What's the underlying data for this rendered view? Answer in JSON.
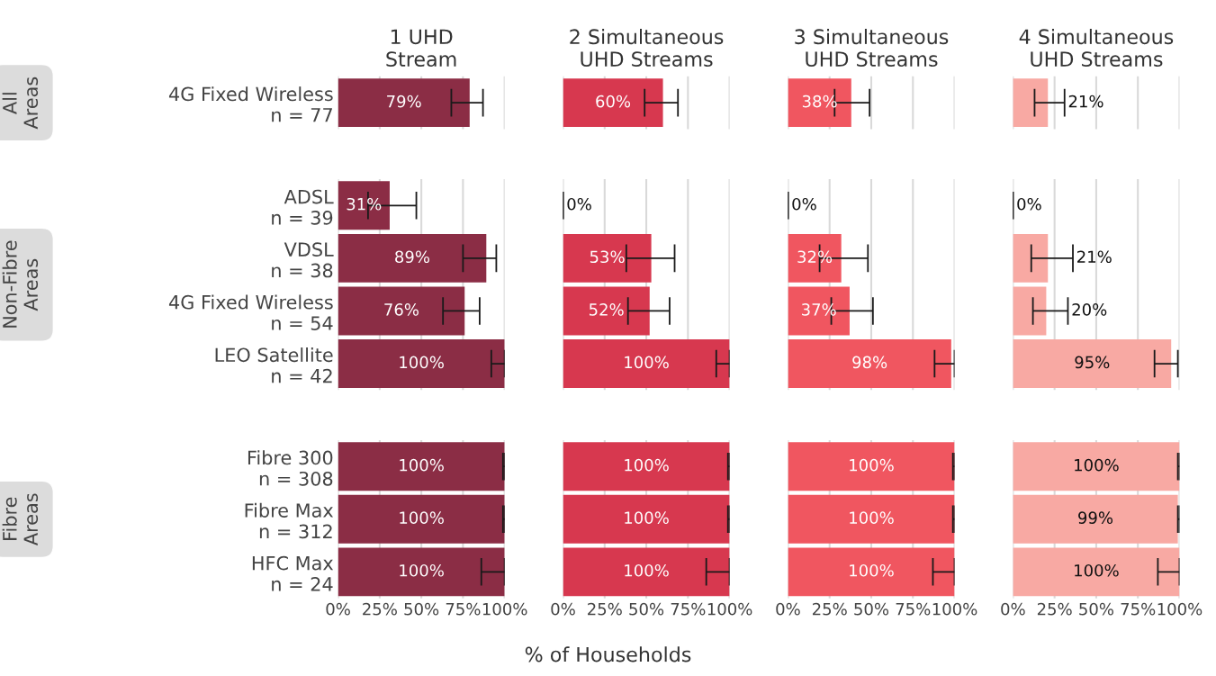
{
  "chart_data": [
    {
      "type": "bar",
      "orientation": "horizontal",
      "title": "1 UHD\nStream",
      "ylabel": "All\nAreas",
      "categories": [
        "4G Fixed Wireless\nn = 77"
      ],
      "values": [
        79
      ],
      "errors": [
        [
          68,
          87
        ]
      ],
      "value_labels": [
        "79%"
      ],
      "color": "#8b2d45",
      "xlim": [
        0,
        100
      ],
      "xticks": [
        {
          "value": 0,
          "label": null
        },
        {
          "value": 25,
          "label": null
        },
        {
          "value": 50,
          "label": null
        },
        {
          "value": 75,
          "label": null
        },
        {
          "value": 100,
          "label": null
        }
      ],
      "grid": "x",
      "tick_labels": "y"
    },
    {
      "type": "bar",
      "orientation": "horizontal",
      "title": "2 Simultaneous\nUHD Streams",
      "categories": [
        null
      ],
      "values": [
        60
      ],
      "errors": [
        [
          49,
          69
        ]
      ],
      "value_labels": [
        "60%"
      ],
      "color": "#d7384f",
      "xlim": [
        0,
        100
      ],
      "xticks": [
        {
          "value": 0,
          "label": null
        },
        {
          "value": 25,
          "label": null
        },
        {
          "value": 50,
          "label": null
        },
        {
          "value": 75,
          "label": null
        },
        {
          "value": 100,
          "label": null
        }
      ],
      "grid": "x",
      "tick_labels": false
    },
    {
      "type": "bar",
      "orientation": "horizontal",
      "title": "3 Simultaneous\nUHD Streams",
      "categories": [
        null
      ],
      "values": [
        38
      ],
      "errors": [
        [
          28,
          49
        ]
      ],
      "value_labels": [
        "38%"
      ],
      "color": "#f05660",
      "xlim": [
        0,
        100
      ],
      "xticks": [
        {
          "value": 0,
          "label": null
        },
        {
          "value": 25,
          "label": null
        },
        {
          "value": 50,
          "label": null
        },
        {
          "value": 75,
          "label": null
        },
        {
          "value": 100,
          "label": null
        }
      ],
      "grid": "x",
      "tick_labels": false
    },
    {
      "type": "bar",
      "orientation": "horizontal",
      "title": "4 Simultaneous\nUHD Streams",
      "categories": [
        null
      ],
      "values": [
        21
      ],
      "errors": [
        [
          13,
          31
        ]
      ],
      "value_labels": [
        "21%"
      ],
      "color": "#f8a9a3",
      "xlim": [
        0,
        100
      ],
      "xticks": [
        {
          "value": 0,
          "label": null
        },
        {
          "value": 25,
          "label": null
        },
        {
          "value": 50,
          "label": null
        },
        {
          "value": 75,
          "label": null
        },
        {
          "value": 100,
          "label": null
        }
      ],
      "grid": "x",
      "tick_labels": false
    },
    {
      "type": "bar",
      "orientation": "horizontal",
      "ylabel": "Non-Fibre\nAreas",
      "categories": [
        "ADSL\nn = 39",
        "VDSL\nn = 38",
        "4G Fixed Wireless\nn = 54",
        "LEO Satellite\nn = 42"
      ],
      "values": [
        31,
        89,
        76,
        100
      ],
      "errors": [
        [
          18,
          47
        ],
        [
          75,
          95
        ],
        [
          63,
          85
        ],
        [
          92,
          100
        ]
      ],
      "value_labels": [
        "31%",
        "89%",
        "76%",
        "100%"
      ],
      "color": "#8b2d45",
      "xlim": [
        0,
        100
      ],
      "xticks": [
        {
          "value": 0,
          "label": null
        },
        {
          "value": 25,
          "label": null
        },
        {
          "value": 50,
          "label": null
        },
        {
          "value": 75,
          "label": null
        },
        {
          "value": 100,
          "label": null
        }
      ],
      "grid": "x",
      "tick_labels": "y"
    },
    {
      "type": "bar",
      "orientation": "horizontal",
      "categories": [
        null,
        null,
        null,
        null
      ],
      "values": [
        0,
        53,
        52,
        100
      ],
      "errors": [
        [
          0,
          0
        ],
        [
          38,
          67
        ],
        [
          39,
          64
        ],
        [
          92,
          100
        ]
      ],
      "value_labels": [
        "0%",
        "53%",
        "52%",
        "100%"
      ],
      "color": "#d7384f",
      "xlim": [
        0,
        100
      ],
      "xticks": [
        {
          "value": 0,
          "label": null
        },
        {
          "value": 25,
          "label": null
        },
        {
          "value": 50,
          "label": null
        },
        {
          "value": 75,
          "label": null
        },
        {
          "value": 100,
          "label": null
        }
      ],
      "grid": "x",
      "tick_labels": false
    },
    {
      "type": "bar",
      "orientation": "horizontal",
      "categories": [
        null,
        null,
        null,
        null
      ],
      "values": [
        0,
        32,
        37,
        98
      ],
      "errors": [
        [
          0,
          0
        ],
        [
          19,
          48
        ],
        [
          26,
          51
        ],
        [
          88,
          100
        ]
      ],
      "value_labels": [
        "0%",
        "32%",
        "37%",
        "98%"
      ],
      "color": "#f05660",
      "xlim": [
        0,
        100
      ],
      "xticks": [
        {
          "value": 0,
          "label": null
        },
        {
          "value": 25,
          "label": null
        },
        {
          "value": 50,
          "label": null
        },
        {
          "value": 75,
          "label": null
        },
        {
          "value": 100,
          "label": null
        }
      ],
      "grid": "x",
      "tick_labels": false
    },
    {
      "type": "bar",
      "orientation": "horizontal",
      "categories": [
        null,
        null,
        null,
        null
      ],
      "values": [
        0,
        21,
        20,
        95
      ],
      "errors": [
        [
          0,
          0
        ],
        [
          11,
          36
        ],
        [
          12,
          33
        ],
        [
          85,
          99
        ]
      ],
      "value_labels": [
        "0%",
        "21%",
        "20%",
        "95%"
      ],
      "color": "#f8a9a3",
      "xlim": [
        0,
        100
      ],
      "xticks": [
        {
          "value": 0,
          "label": null
        },
        {
          "value": 25,
          "label": null
        },
        {
          "value": 50,
          "label": null
        },
        {
          "value": 75,
          "label": null
        },
        {
          "value": 100,
          "label": null
        }
      ],
      "grid": "x",
      "tick_labels": false
    },
    {
      "type": "bar",
      "orientation": "horizontal",
      "ylabel": "Fibre\nAreas",
      "categories": [
        "Fibre 300\nn = 308",
        "Fibre Max\nn = 312",
        "HFC Max\nn = 24"
      ],
      "values": [
        100,
        100,
        100
      ],
      "errors": [
        [
          99,
          100
        ],
        [
          99,
          100
        ],
        [
          86,
          100
        ]
      ],
      "value_labels": [
        "100%",
        "100%",
        "100%"
      ],
      "color": "#8b2d45",
      "xlim": [
        0,
        100
      ],
      "xticks": [
        {
          "value": 0,
          "label": "0%"
        },
        {
          "value": 25,
          "label": "25%"
        },
        {
          "value": 50,
          "label": "50%"
        },
        {
          "value": 75,
          "label": "75%"
        },
        {
          "value": 100,
          "label": "100%"
        }
      ],
      "grid": "x"
    },
    {
      "type": "bar",
      "orientation": "horizontal",
      "xlabel": "% of Households",
      "categories": [
        null,
        null,
        null
      ],
      "values": [
        100,
        100,
        100
      ],
      "errors": [
        [
          99,
          100
        ],
        [
          99,
          100
        ],
        [
          86,
          100
        ]
      ],
      "value_labels": [
        "100%",
        "100%",
        "100%"
      ],
      "color": "#d7384f",
      "xlim": [
        0,
        100
      ],
      "xticks": [
        {
          "value": 0,
          "label": "0%"
        },
        {
          "value": 25,
          "label": "25%"
        },
        {
          "value": 50,
          "label": "50%"
        },
        {
          "value": 75,
          "label": "75%"
        },
        {
          "value": 100,
          "label": "100%"
        }
      ],
      "grid": "x",
      "tick_labels": "x"
    },
    {
      "type": "bar",
      "orientation": "horizontal",
      "categories": [
        null,
        null,
        null
      ],
      "values": [
        100,
        100,
        100
      ],
      "errors": [
        [
          99,
          100
        ],
        [
          99,
          100
        ],
        [
          87,
          100
        ]
      ],
      "value_labels": [
        "100%",
        "100%",
        "100%"
      ],
      "color": "#f05660",
      "xlim": [
        0,
        100
      ],
      "xticks": [
        {
          "value": 0,
          "label": "0%"
        },
        {
          "value": 25,
          "label": "25%"
        },
        {
          "value": 50,
          "label": "50%"
        },
        {
          "value": 75,
          "label": "75%"
        },
        {
          "value": 100,
          "label": "100%"
        }
      ],
      "grid": "x",
      "tick_labels": "x"
    },
    {
      "type": "bar",
      "orientation": "horizontal",
      "categories": [
        null,
        null,
        null
      ],
      "values": [
        100,
        99,
        100
      ],
      "errors": [
        [
          99,
          100
        ],
        [
          99,
          100
        ],
        [
          87,
          100
        ]
      ],
      "value_labels": [
        "100%",
        "99%",
        "100%"
      ],
      "color": "#f8a9a3",
      "xlim": [
        0,
        100
      ],
      "xticks": [
        {
          "value": 0,
          "label": "0%"
        },
        {
          "value": 25,
          "label": "25%"
        },
        {
          "value": 50,
          "label": "50%"
        },
        {
          "value": 75,
          "label": "75%"
        },
        {
          "value": 100,
          "label": "100%"
        }
      ],
      "grid": "x",
      "tick_labels": "x"
    }
  ]
}
